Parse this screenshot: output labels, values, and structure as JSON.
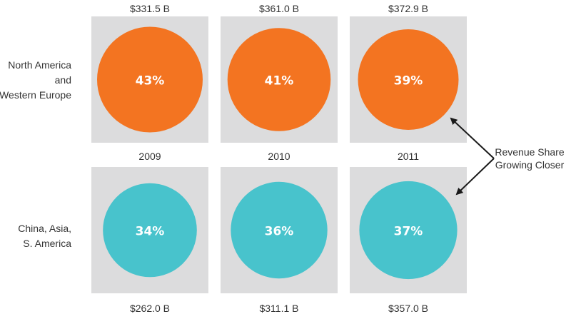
{
  "chart_data": {
    "type": "bubble-grid",
    "years": [
      "2009",
      "2010",
      "2011"
    ],
    "series": [
      {
        "name": "North America and Western Europe",
        "label_lines": [
          "North America",
          "and",
          "Western Europe"
        ],
        "color": "#f37421",
        "revenue": [
          "$331.5 B",
          "$361.0 B",
          "$372.9 B"
        ],
        "share_labels": [
          "43%",
          "41%",
          "39%"
        ],
        "share": [
          43,
          41,
          39
        ]
      },
      {
        "name": "China, Asia, S. America",
        "label_lines": [
          "China, Asia,",
          "S. America"
        ],
        "color": "#48c3cc",
        "revenue": [
          "$262.0 B",
          "$311.1 B",
          "$357.0 B"
        ],
        "share_labels": [
          "34%",
          "36%",
          "37%"
        ],
        "share": [
          34,
          36,
          37
        ]
      }
    ],
    "annotation": {
      "lines": [
        "Revenue Share",
        "Growing Closer"
      ]
    },
    "colors": {
      "panel": "#dcdcdd",
      "arrow": "#1a1a1a"
    }
  }
}
